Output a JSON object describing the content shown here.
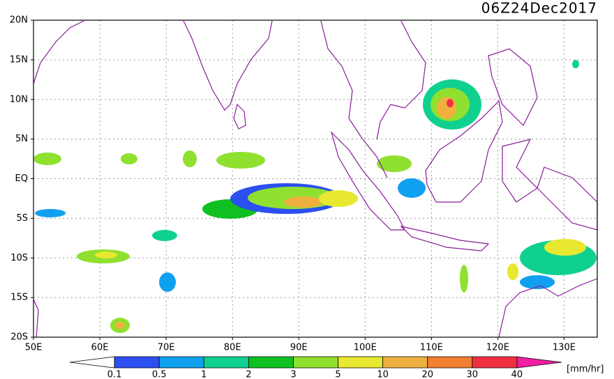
{
  "title": "06Z24Dec2017",
  "map": {
    "lonlim": [
      50,
      135
    ],
    "latlim": [
      -20,
      20
    ],
    "lat_ticks": [
      {
        "value": 20,
        "label": "20N"
      },
      {
        "value": 15,
        "label": "15N"
      },
      {
        "value": 10,
        "label": "10N"
      },
      {
        "value": 5,
        "label": "5N"
      },
      {
        "value": 0,
        "label": "EQ"
      },
      {
        "value": -5,
        "label": "5S"
      },
      {
        "value": -10,
        "label": "10S"
      },
      {
        "value": -15,
        "label": "15S"
      },
      {
        "value": -20,
        "label": "20S"
      }
    ],
    "lon_ticks": [
      {
        "value": 50,
        "label": "50E"
      },
      {
        "value": 60,
        "label": "60E"
      },
      {
        "value": 70,
        "label": "70E"
      },
      {
        "value": 80,
        "label": "80E"
      },
      {
        "value": 90,
        "label": "90E"
      },
      {
        "value": 100,
        "label": "100E"
      },
      {
        "value": 110,
        "label": "110E"
      },
      {
        "value": 120,
        "label": "120E"
      },
      {
        "value": 130,
        "label": "130E"
      }
    ]
  },
  "colorbar": {
    "levels": [
      0.1,
      0.5,
      1,
      2,
      3,
      5,
      10,
      20,
      30,
      40
    ],
    "colors": [
      "#ffffff",
      "#2b4ff0",
      "#10a0f0",
      "#10d090",
      "#10c020",
      "#90e030",
      "#e8e830",
      "#f0b040",
      "#f08030",
      "#f03040",
      "#f020a0"
    ],
    "unit": "[mm/hr]"
  }
}
